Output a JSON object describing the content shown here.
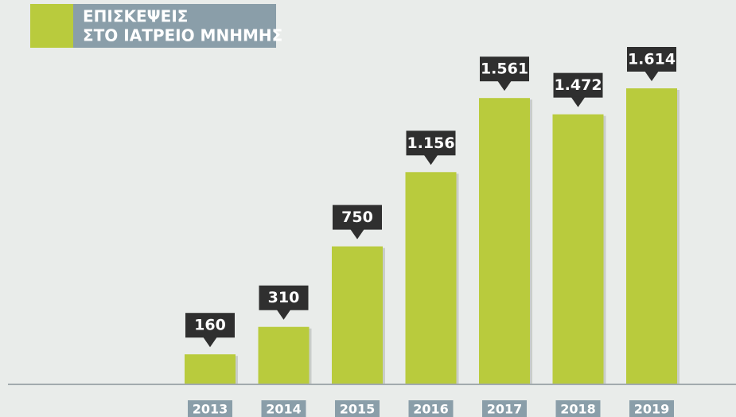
{
  "chart_data": {
    "type": "bar",
    "title": [
      "ΕΠΙΣΚΕΨΕΙΣ",
      "ΣΤΟ ΙΑΤΡΕΙΟ ΜΝΗΜΗΣ"
    ],
    "categories": [
      "2013",
      "2014",
      "2015",
      "2016",
      "2017",
      "2018",
      "2019"
    ],
    "values": [
      160,
      310,
      750,
      1156,
      1561,
      1472,
      1614
    ],
    "value_labels": [
      "160",
      "310",
      "750",
      "1.156",
      "1.561",
      "1.472",
      "1.614"
    ],
    "color": "#b9cb3d"
  }
}
